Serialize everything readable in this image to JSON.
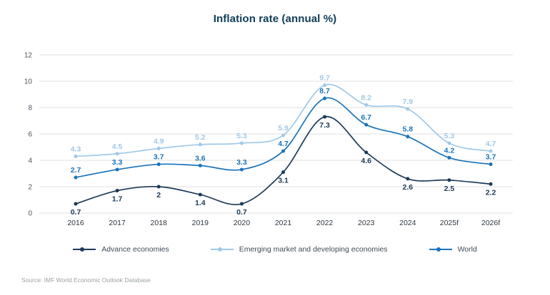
{
  "title": "Inflation rate (annual %)",
  "source": "Source: IMF World Economic Outlook Database",
  "colors": {
    "advance": "#1c3a57",
    "emerging": "#a0c9e8",
    "world": "#1b74ba",
    "grid": "#e2e2e2",
    "ytick_text": "#4a5560",
    "xtick_text": "#2e3742",
    "title_text": "#0f3c59"
  },
  "chart_data": {
    "type": "line",
    "title": "Inflation rate (annual %)",
    "categories": [
      "2016",
      "2017",
      "2018",
      "2019",
      "2020",
      "2021",
      "2022",
      "2023",
      "2024",
      "2025f",
      "2026f"
    ],
    "yticks": [
      0,
      2,
      4,
      6,
      8,
      10,
      12
    ],
    "ylim": [
      0,
      12
    ],
    "grid": true,
    "legend_position": "bottom",
    "series": [
      {
        "name": "Advance economies",
        "color": "#1c3a57",
        "label_position": "below",
        "values": [
          0.7,
          1.7,
          2,
          1.4,
          0.7,
          3.1,
          7.3,
          4.6,
          2.6,
          2.5,
          2.2
        ]
      },
      {
        "name": "Emerging market and developing economies",
        "color": "#a0c9e8",
        "label_position": "above",
        "values": [
          4.3,
          4.5,
          4.9,
          5.2,
          5.3,
          5.9,
          9.7,
          8.2,
          7.9,
          5.3,
          4.7
        ]
      },
      {
        "name": "World",
        "color": "#1b74ba",
        "label_position": "above",
        "values": [
          2.7,
          3.3,
          3.7,
          3.6,
          3.3,
          4.7,
          8.7,
          6.7,
          5.8,
          4.2,
          3.7
        ]
      }
    ]
  }
}
